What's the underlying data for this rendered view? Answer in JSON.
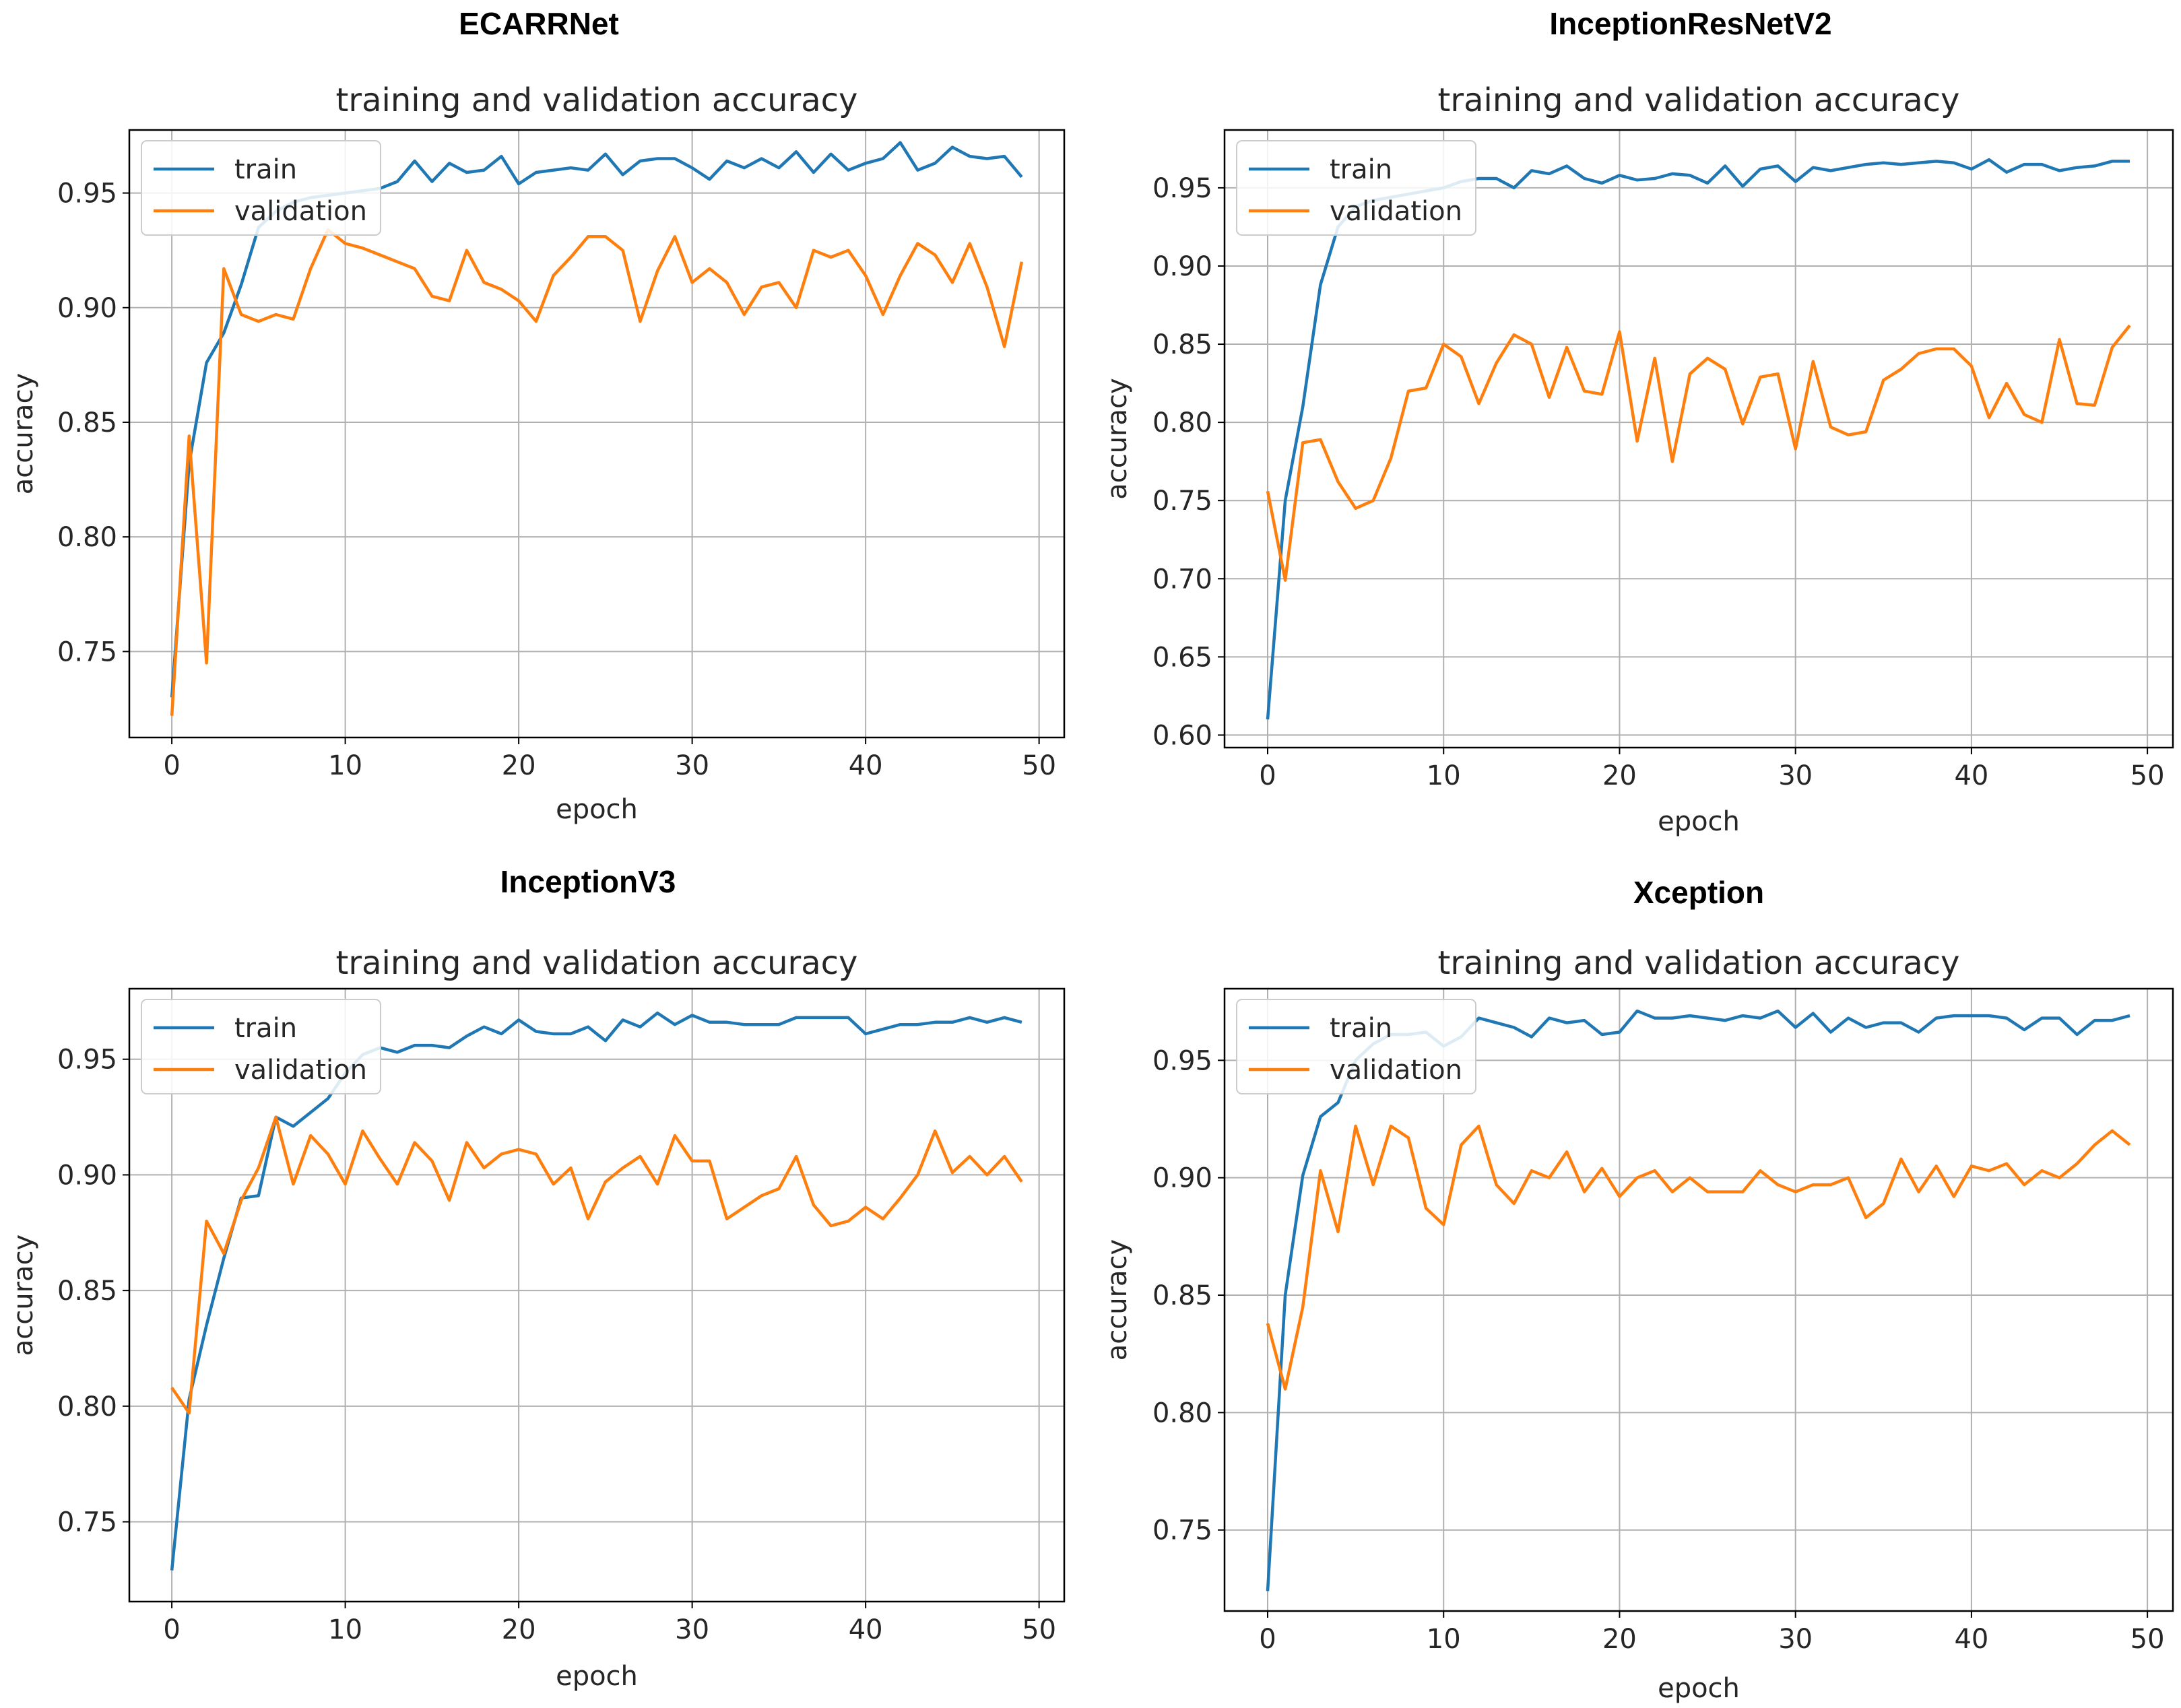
{
  "figure": {
    "background": "#ffffff"
  },
  "colors": {
    "train": "#1f77b4",
    "validation": "#ff7f0e",
    "grid": "#b0b0b0",
    "axis": "#000000"
  },
  "chart_data": [
    {
      "type": "line",
      "panel_title": "ECARRNet",
      "title": "training and validation accuracy",
      "xlabel": "epoch",
      "ylabel": "accuracy",
      "xlim": [
        -2.45,
        51.45
      ],
      "ylim": [
        0.7125,
        0.9775
      ],
      "xticks": [
        0,
        10,
        20,
        30,
        40,
        50
      ],
      "yticks": [
        0.75,
        0.8,
        0.85,
        0.9,
        0.95
      ],
      "ytick_labels": [
        "0.75",
        "0.80",
        "0.85",
        "0.90",
        "0.95"
      ],
      "legend": "upper left",
      "grid": true,
      "x": [
        0,
        1,
        2,
        3,
        4,
        5,
        6,
        7,
        8,
        9,
        10,
        11,
        12,
        13,
        14,
        15,
        16,
        17,
        18,
        19,
        20,
        21,
        22,
        23,
        24,
        25,
        26,
        27,
        28,
        29,
        30,
        31,
        32,
        33,
        34,
        35,
        36,
        37,
        38,
        39,
        40,
        41,
        42,
        43,
        44,
        45,
        46,
        47,
        48,
        49
      ],
      "series": [
        {
          "name": "train",
          "values": [
            0.73,
            0.832,
            0.876,
            0.889,
            0.91,
            0.935,
            0.942,
            0.946,
            0.948,
            0.949,
            0.95,
            0.951,
            0.952,
            0.955,
            0.964,
            0.955,
            0.963,
            0.959,
            0.96,
            0.966,
            0.954,
            0.959,
            0.96,
            0.961,
            0.96,
            0.967,
            0.958,
            0.964,
            0.965,
            0.965,
            0.961,
            0.956,
            0.964,
            0.961,
            0.965,
            0.961,
            0.968,
            0.959,
            0.967,
            0.96,
            0.963,
            0.965,
            0.972,
            0.96,
            0.963,
            0.97,
            0.966,
            0.965,
            0.966,
            0.957
          ]
        },
        {
          "name": "validation",
          "values": [
            0.722,
            0.844,
            0.745,
            0.917,
            0.897,
            0.894,
            0.897,
            0.895,
            0.917,
            0.934,
            0.928,
            0.926,
            0.923,
            0.92,
            0.917,
            0.905,
            0.903,
            0.925,
            0.911,
            0.908,
            0.903,
            0.894,
            0.914,
            0.922,
            0.931,
            0.931,
            0.925,
            0.894,
            0.916,
            0.931,
            0.911,
            0.917,
            0.911,
            0.897,
            0.909,
            0.911,
            0.9,
            0.925,
            0.922,
            0.925,
            0.914,
            0.897,
            0.914,
            0.928,
            0.923,
            0.911,
            0.928,
            0.909,
            0.883,
            0.92
          ]
        }
      ]
    },
    {
      "type": "line",
      "panel_title": "InceptionResNetV2",
      "title": "training and validation accuracy",
      "xlabel": "epoch",
      "ylabel": "accuracy",
      "xlim": [
        -2.45,
        51.45
      ],
      "ylim": [
        0.592,
        0.987
      ],
      "xticks": [
        0,
        10,
        20,
        30,
        40,
        50
      ],
      "yticks": [
        0.6,
        0.65,
        0.7,
        0.75,
        0.8,
        0.85,
        0.9,
        0.95
      ],
      "ytick_labels": [
        "0.60",
        "0.65",
        "0.70",
        "0.75",
        "0.80",
        "0.85",
        "0.90",
        "0.95"
      ],
      "legend": "upper left",
      "grid": true,
      "x": [
        0,
        1,
        2,
        3,
        4,
        5,
        6,
        7,
        8,
        9,
        10,
        11,
        12,
        13,
        14,
        15,
        16,
        17,
        18,
        19,
        20,
        21,
        22,
        23,
        24,
        25,
        26,
        27,
        28,
        29,
        30,
        31,
        32,
        33,
        34,
        35,
        36,
        37,
        38,
        39,
        40,
        41,
        42,
        43,
        44,
        45,
        46,
        47,
        48,
        49
      ],
      "series": [
        {
          "name": "train",
          "values": [
            0.61,
            0.75,
            0.81,
            0.888,
            0.925,
            0.938,
            0.942,
            0.944,
            0.946,
            0.948,
            0.95,
            0.954,
            0.956,
            0.956,
            0.95,
            0.961,
            0.959,
            0.964,
            0.956,
            0.953,
            0.958,
            0.955,
            0.956,
            0.959,
            0.958,
            0.953,
            0.964,
            0.951,
            0.962,
            0.964,
            0.954,
            0.963,
            0.961,
            0.963,
            0.965,
            0.966,
            0.965,
            0.966,
            0.967,
            0.966,
            0.962,
            0.968,
            0.96,
            0.965,
            0.965,
            0.961,
            0.963,
            0.964,
            0.967,
            0.967
          ]
        },
        {
          "name": "validation",
          "values": [
            0.756,
            0.699,
            0.787,
            0.789,
            0.762,
            0.745,
            0.75,
            0.777,
            0.82,
            0.822,
            0.85,
            0.842,
            0.812,
            0.838,
            0.856,
            0.85,
            0.816,
            0.848,
            0.82,
            0.818,
            0.858,
            0.788,
            0.841,
            0.775,
            0.831,
            0.841,
            0.834,
            0.799,
            0.829,
            0.831,
            0.783,
            0.839,
            0.797,
            0.792,
            0.794,
            0.827,
            0.834,
            0.844,
            0.847,
            0.847,
            0.836,
            0.803,
            0.825,
            0.805,
            0.8,
            0.853,
            0.812,
            0.811,
            0.848,
            0.862
          ]
        }
      ]
    },
    {
      "type": "line",
      "panel_title": "InceptionV3",
      "title": "training and validation accuracy",
      "xlabel": "epoch",
      "ylabel": "accuracy",
      "xlim": [
        -2.45,
        51.45
      ],
      "ylim": [
        0.7155,
        0.9805
      ],
      "xticks": [
        0,
        10,
        20,
        30,
        40,
        50
      ],
      "yticks": [
        0.75,
        0.8,
        0.85,
        0.9,
        0.95
      ],
      "ytick_labels": [
        "0.75",
        "0.80",
        "0.85",
        "0.90",
        "0.95"
      ],
      "legend": "upper left",
      "grid": true,
      "x": [
        0,
        1,
        2,
        3,
        4,
        5,
        6,
        7,
        8,
        9,
        10,
        11,
        12,
        13,
        14,
        15,
        16,
        17,
        18,
        19,
        20,
        21,
        22,
        23,
        24,
        25,
        26,
        27,
        28,
        29,
        30,
        31,
        32,
        33,
        34,
        35,
        36,
        37,
        38,
        39,
        40,
        41,
        42,
        43,
        44,
        45,
        46,
        47,
        48,
        49
      ],
      "series": [
        {
          "name": "train",
          "values": [
            0.729,
            0.803,
            0.835,
            0.864,
            0.89,
            0.891,
            0.925,
            0.921,
            0.927,
            0.933,
            0.944,
            0.952,
            0.955,
            0.953,
            0.956,
            0.956,
            0.955,
            0.96,
            0.964,
            0.961,
            0.967,
            0.962,
            0.961,
            0.961,
            0.964,
            0.958,
            0.967,
            0.964,
            0.97,
            0.965,
            0.969,
            0.966,
            0.966,
            0.965,
            0.965,
            0.965,
            0.968,
            0.968,
            0.968,
            0.968,
            0.961,
            0.963,
            0.965,
            0.965,
            0.966,
            0.966,
            0.968,
            0.966,
            0.968,
            0.966
          ]
        },
        {
          "name": "validation",
          "values": [
            0.808,
            0.797,
            0.88,
            0.866,
            0.889,
            0.903,
            0.925,
            0.896,
            0.917,
            0.909,
            0.896,
            0.919,
            0.907,
            0.896,
            0.914,
            0.906,
            0.889,
            0.914,
            0.903,
            0.909,
            0.911,
            0.909,
            0.896,
            0.903,
            0.881,
            0.897,
            0.903,
            0.908,
            0.896,
            0.917,
            0.906,
            0.906,
            0.881,
            0.886,
            0.891,
            0.894,
            0.908,
            0.887,
            0.878,
            0.88,
            0.886,
            0.881,
            0.89,
            0.9,
            0.919,
            0.901,
            0.908,
            0.9,
            0.908,
            0.897
          ]
        }
      ]
    },
    {
      "type": "line",
      "panel_title": "Xception",
      "title": "training and validation accuracy",
      "xlabel": "epoch",
      "ylabel": "accuracy",
      "xlim": [
        -2.45,
        51.45
      ],
      "ylim": [
        0.7155,
        0.9805
      ],
      "xticks": [
        0,
        10,
        20,
        30,
        40,
        50
      ],
      "yticks": [
        0.75,
        0.8,
        0.85,
        0.9,
        0.95
      ],
      "ytick_labels": [
        "0.75",
        "0.80",
        "0.85",
        "0.90",
        "0.95"
      ],
      "legend": "upper left",
      "grid": true,
      "x": [
        0,
        1,
        2,
        3,
        4,
        5,
        6,
        7,
        8,
        9,
        10,
        11,
        12,
        13,
        14,
        15,
        16,
        17,
        18,
        19,
        20,
        21,
        22,
        23,
        24,
        25,
        26,
        27,
        28,
        29,
        30,
        31,
        32,
        33,
        34,
        35,
        36,
        37,
        38,
        39,
        40,
        41,
        42,
        43,
        44,
        45,
        46,
        47,
        48,
        49
      ],
      "series": [
        {
          "name": "train",
          "values": [
            0.724,
            0.85,
            0.901,
            0.926,
            0.932,
            0.95,
            0.957,
            0.961,
            0.961,
            0.962,
            0.956,
            0.96,
            0.968,
            0.966,
            0.964,
            0.96,
            0.968,
            0.966,
            0.967,
            0.961,
            0.962,
            0.971,
            0.968,
            0.968,
            0.969,
            0.968,
            0.967,
            0.969,
            0.968,
            0.971,
            0.964,
            0.97,
            0.962,
            0.968,
            0.964,
            0.966,
            0.966,
            0.962,
            0.968,
            0.969,
            0.969,
            0.969,
            0.968,
            0.963,
            0.968,
            0.968,
            0.961,
            0.967,
            0.967,
            0.969
          ]
        },
        {
          "name": "validation",
          "values": [
            0.838,
            0.81,
            0.845,
            0.903,
            0.877,
            0.922,
            0.897,
            0.922,
            0.917,
            0.887,
            0.88,
            0.914,
            0.922,
            0.897,
            0.889,
            0.903,
            0.9,
            0.911,
            0.894,
            0.904,
            0.892,
            0.9,
            0.903,
            0.894,
            0.9,
            0.894,
            0.894,
            0.894,
            0.903,
            0.897,
            0.894,
            0.897,
            0.897,
            0.9,
            0.883,
            0.889,
            0.908,
            0.894,
            0.905,
            0.892,
            0.905,
            0.903,
            0.906,
            0.897,
            0.903,
            0.9,
            0.906,
            0.914,
            0.92,
            0.914
          ]
        }
      ]
    }
  ]
}
